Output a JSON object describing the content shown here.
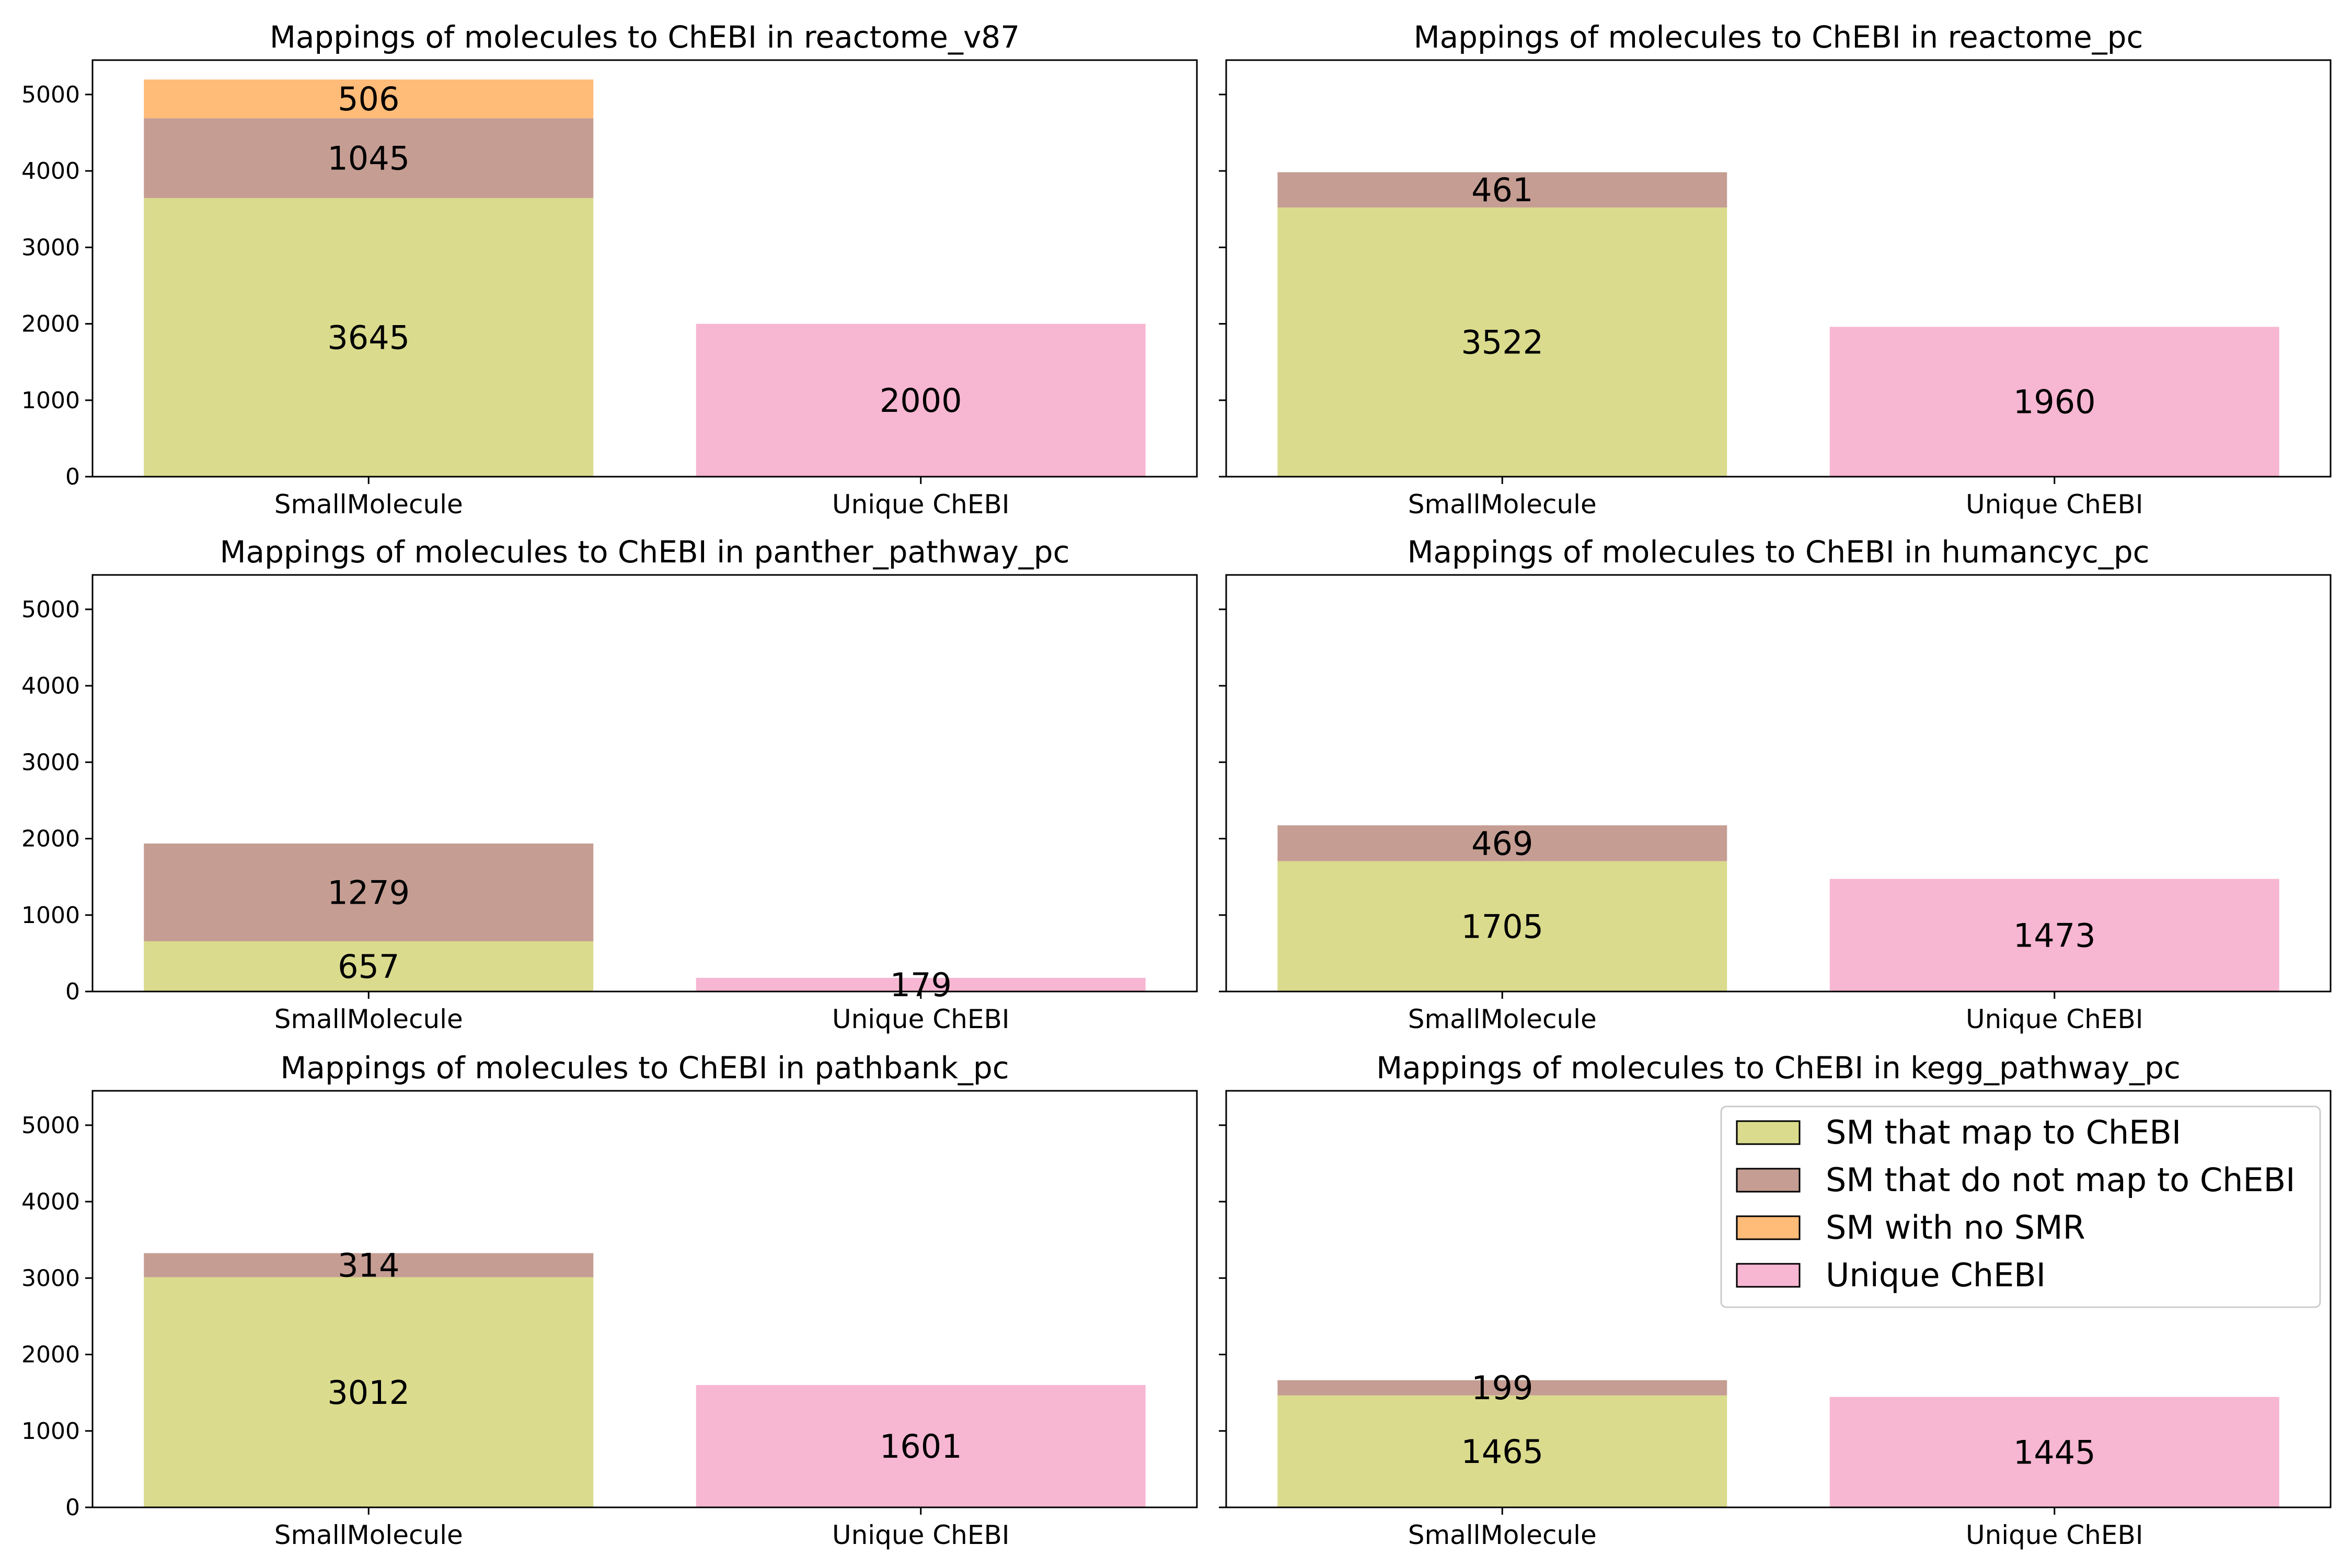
{
  "chart_data": [
    {
      "type": "bar",
      "stacked": true,
      "title": "Mappings of molecules to ChEBI in reactome_v87",
      "categories": [
        "SmallMolecule",
        "Unique ChEBI"
      ],
      "ylim": [
        0,
        5450
      ],
      "yticks": [
        "0",
        "1000",
        "2000",
        "3000",
        "4000",
        "5000"
      ],
      "show_ytick_labels": true,
      "grid": false,
      "series": [
        {
          "name": "SM that map to ChEBI",
          "values": [
            3645,
            null
          ]
        },
        {
          "name": "SM that do not map to ChEBI",
          "values": [
            1045,
            null
          ]
        },
        {
          "name": "SM with no SMR",
          "values": [
            506,
            null
          ]
        },
        {
          "name": "Unique ChEBI",
          "values": [
            null,
            2000
          ]
        }
      ]
    },
    {
      "type": "bar",
      "stacked": true,
      "title": "Mappings of molecules to ChEBI in reactome_pc",
      "categories": [
        "SmallMolecule",
        "Unique ChEBI"
      ],
      "ylim": [
        0,
        5450
      ],
      "yticks": [
        "0",
        "1000",
        "2000",
        "3000",
        "4000",
        "5000"
      ],
      "show_ytick_labels": false,
      "grid": false,
      "series": [
        {
          "name": "SM that map to ChEBI",
          "values": [
            3522,
            null
          ]
        },
        {
          "name": "SM that do not map to ChEBI",
          "values": [
            461,
            null
          ]
        },
        {
          "name": "SM with no SMR",
          "values": [
            null,
            null
          ]
        },
        {
          "name": "Unique ChEBI",
          "values": [
            null,
            1960
          ]
        }
      ]
    },
    {
      "type": "bar",
      "stacked": true,
      "title": "Mappings of molecules to ChEBI in panther_pathway_pc",
      "categories": [
        "SmallMolecule",
        "Unique ChEBI"
      ],
      "ylim": [
        0,
        5450
      ],
      "yticks": [
        "0",
        "1000",
        "2000",
        "3000",
        "4000",
        "5000"
      ],
      "show_ytick_labels": true,
      "grid": false,
      "series": [
        {
          "name": "SM that map to ChEBI",
          "values": [
            657,
            null
          ]
        },
        {
          "name": "SM that do not map to ChEBI",
          "values": [
            1279,
            null
          ]
        },
        {
          "name": "SM with no SMR",
          "values": [
            null,
            null
          ]
        },
        {
          "name": "Unique ChEBI",
          "values": [
            null,
            179
          ]
        }
      ]
    },
    {
      "type": "bar",
      "stacked": true,
      "title": "Mappings of molecules to ChEBI in humancyc_pc",
      "categories": [
        "SmallMolecule",
        "Unique ChEBI"
      ],
      "ylim": [
        0,
        5450
      ],
      "yticks": [
        "0",
        "1000",
        "2000",
        "3000",
        "4000",
        "5000"
      ],
      "show_ytick_labels": false,
      "grid": false,
      "series": [
        {
          "name": "SM that map to ChEBI",
          "values": [
            1705,
            null
          ]
        },
        {
          "name": "SM that do not map to ChEBI",
          "values": [
            469,
            null
          ]
        },
        {
          "name": "SM with no SMR",
          "values": [
            null,
            null
          ]
        },
        {
          "name": "Unique ChEBI",
          "values": [
            null,
            1473
          ]
        }
      ]
    },
    {
      "type": "bar",
      "stacked": true,
      "title": "Mappings of molecules to ChEBI in pathbank_pc",
      "categories": [
        "SmallMolecule",
        "Unique ChEBI"
      ],
      "ylim": [
        0,
        5450
      ],
      "yticks": [
        "0",
        "1000",
        "2000",
        "3000",
        "4000",
        "5000"
      ],
      "show_ytick_labels": true,
      "grid": false,
      "series": [
        {
          "name": "SM that map to ChEBI",
          "values": [
            3012,
            null
          ]
        },
        {
          "name": "SM that do not map to ChEBI",
          "values": [
            314,
            null
          ]
        },
        {
          "name": "SM with no SMR",
          "values": [
            null,
            null
          ]
        },
        {
          "name": "Unique ChEBI",
          "values": [
            null,
            1601
          ]
        }
      ]
    },
    {
      "type": "bar",
      "stacked": true,
      "title": "Mappings of molecules to ChEBI in kegg_pathway_pc",
      "categories": [
        "SmallMolecule",
        "Unique ChEBI"
      ],
      "ylim": [
        0,
        5450
      ],
      "yticks": [
        "0",
        "1000",
        "2000",
        "3000",
        "4000",
        "5000"
      ],
      "show_ytick_labels": false,
      "grid": false,
      "legend": "upper-right",
      "series": [
        {
          "name": "SM that map to ChEBI",
          "values": [
            1465,
            null
          ]
        },
        {
          "name": "SM that do not map to ChEBI",
          "values": [
            199,
            null
          ]
        },
        {
          "name": "SM with no SMR",
          "values": [
            null,
            null
          ]
        },
        {
          "name": "Unique ChEBI",
          "values": [
            null,
            1445
          ]
        }
      ]
    }
  ],
  "legend": {
    "entries": [
      {
        "label": "SM that map to ChEBI",
        "color": "#dadb8d"
      },
      {
        "label": "SM that do not map to ChEBI",
        "color": "#c59d93"
      },
      {
        "label": "SM with no SMR",
        "color": "#ffbb78"
      },
      {
        "label": "Unique ChEBI",
        "color": "#f7b6d2"
      }
    ]
  },
  "colors": {
    "SM that map to ChEBI": "#dadb8d",
    "SM that do not map to ChEBI": "#c59d93",
    "SM with no SMR": "#ffbb78",
    "Unique ChEBI": "#f7b6d2"
  }
}
